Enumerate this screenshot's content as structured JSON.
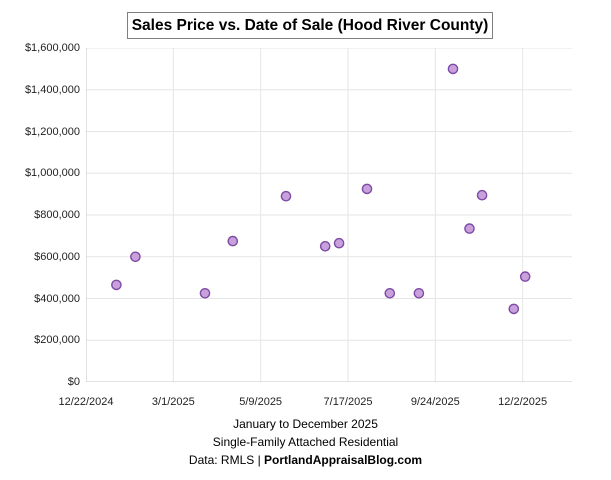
{
  "title": "Sales Price vs. Date of Sale (Hood River County)",
  "captions": {
    "line1": "January to December 2025",
    "line2": "Single-Family Attached Residential",
    "line3_prefix": "Data: RMLS | ",
    "line3_bold": "PortlandAppraisalBlog.com"
  },
  "colors": {
    "marker_fill": "#c8a1dc",
    "marker_stroke": "#7e4ba5",
    "gridline": "#e6e6e6",
    "axis_line": "#c6c6c6",
    "title_border": "#7f7f7f",
    "text": "#1f1f1f"
  },
  "chart_data": {
    "type": "scatter",
    "title": "Sales Price vs. Date of Sale (Hood River County)",
    "grid": true,
    "legend": false,
    "x_axis": {
      "type": "date",
      "min": "12/22/2024",
      "max": "1/10/2026",
      "tick_interval_days": 69,
      "ticks": [
        {
          "label": "12/22/2024",
          "date": "12/22/2024"
        },
        {
          "label": "3/1/2025",
          "date": "3/1/2025"
        },
        {
          "label": "5/9/2025",
          "date": "5/9/2025"
        },
        {
          "label": "7/17/2025",
          "date": "7/17/2025"
        },
        {
          "label": "9/24/2025",
          "date": "9/24/2025"
        },
        {
          "label": "12/2/2025",
          "date": "12/2/2025"
        }
      ]
    },
    "y_axis": {
      "min": 0,
      "max": 1600000,
      "tick_interval": 200000,
      "tick_labels": [
        "$0",
        "$200,000",
        "$400,000",
        "$600,000",
        "$800,000",
        "$1,000,000",
        "$1,200,000",
        "$1,400,000",
        "$1,600,000"
      ]
    },
    "points": [
      {
        "date": "1/15/2025",
        "price": 465000
      },
      {
        "date": "1/30/2025",
        "price": 600000
      },
      {
        "date": "3/26/2025",
        "price": 425000
      },
      {
        "date": "4/17/2025",
        "price": 675000
      },
      {
        "date": "5/29/2025",
        "price": 890000
      },
      {
        "date": "6/29/2025",
        "price": 650000
      },
      {
        "date": "7/10/2025",
        "price": 665000
      },
      {
        "date": "8/1/2025",
        "price": 925000
      },
      {
        "date": "8/19/2025",
        "price": 425000
      },
      {
        "date": "9/11/2025",
        "price": 425000
      },
      {
        "date": "10/8/2025",
        "price": 1500000
      },
      {
        "date": "10/21/2025",
        "price": 735000
      },
      {
        "date": "10/31/2025",
        "price": 895000
      },
      {
        "date": "11/25/2025",
        "price": 350000
      },
      {
        "date": "12/4/2025",
        "price": 505000
      }
    ]
  }
}
